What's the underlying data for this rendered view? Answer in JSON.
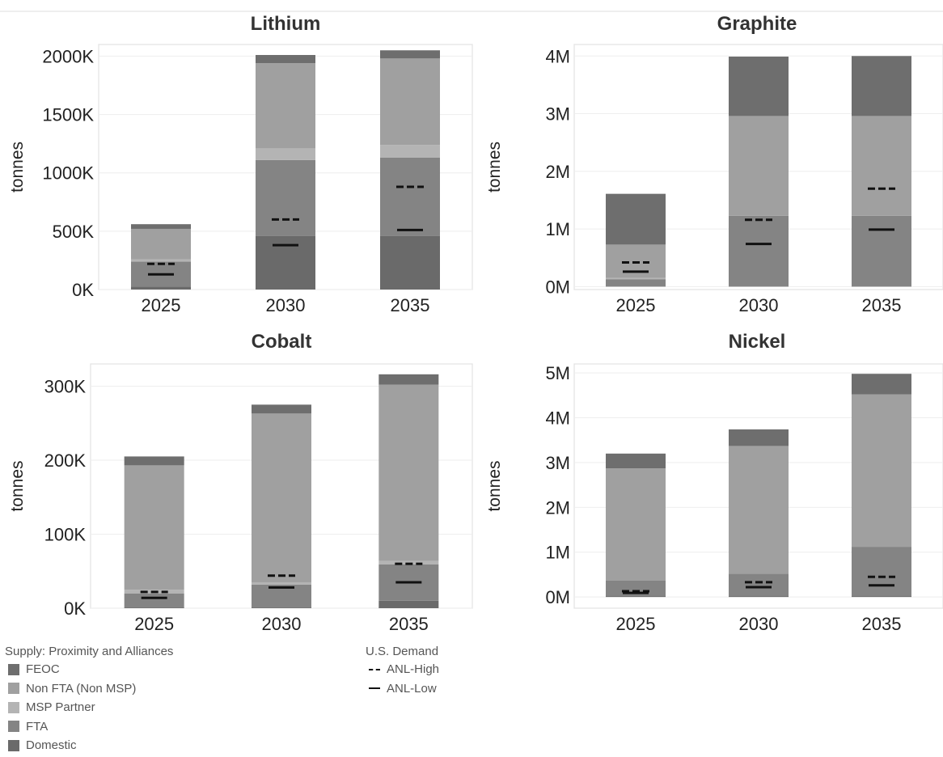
{
  "chart_data": [
    {
      "type": "bar",
      "stacked": true,
      "title": "Lithium",
      "ylabel": "tonnes",
      "categories": [
        "2025",
        "2030",
        "2035"
      ],
      "ylim": [
        0,
        2100000
      ],
      "yticks": [
        0,
        500000,
        1000000,
        1500000,
        2000000
      ],
      "yticklabels": [
        "0K",
        "500K",
        "1000K",
        "1500K",
        "2000K"
      ],
      "series": [
        {
          "name": "Domestic",
          "values": [
            25000,
            460000,
            460000
          ]
        },
        {
          "name": "FTA",
          "values": [
            215000,
            650000,
            670000
          ]
        },
        {
          "name": "MSP Partner",
          "values": [
            20000,
            100000,
            110000
          ]
        },
        {
          "name": "Non FTA (Non MSP)",
          "values": [
            260000,
            730000,
            740000
          ]
        },
        {
          "name": "FEOC",
          "values": [
            40000,
            70000,
            70000
          ]
        }
      ],
      "demand": {
        "ANL-High": [
          220000,
          600000,
          880000
        ],
        "ANL-Low": [
          130000,
          380000,
          510000
        ]
      }
    },
    {
      "type": "bar",
      "stacked": true,
      "title": "Graphite",
      "ylabel": "tonnes",
      "categories": [
        "2025",
        "2030",
        "2035"
      ],
      "ylim": [
        -50000,
        4200000
      ],
      "yticks": [
        0,
        1000000,
        2000000,
        3000000,
        4000000
      ],
      "yticklabels": [
        "0M",
        "1M",
        "2M",
        "3M",
        "4M"
      ],
      "series": [
        {
          "name": "Domestic",
          "values": [
            0,
            0,
            0
          ]
        },
        {
          "name": "FTA",
          "values": [
            130000,
            1230000,
            1230000
          ]
        },
        {
          "name": "MSP Partner",
          "values": [
            20000,
            0,
            0
          ]
        },
        {
          "name": "Non FTA (Non MSP)",
          "values": [
            580000,
            1730000,
            1730000
          ]
        },
        {
          "name": "FEOC",
          "values": [
            880000,
            1030000,
            1040000
          ]
        }
      ],
      "demand": {
        "ANL-High": [
          420000,
          1160000,
          1700000
        ],
        "ANL-Low": [
          260000,
          740000,
          990000
        ]
      }
    },
    {
      "type": "bar",
      "stacked": true,
      "title": "Cobalt",
      "ylabel": "tonnes",
      "categories": [
        "2025",
        "2030",
        "2035"
      ],
      "ylim": [
        0,
        330000
      ],
      "yticks": [
        0,
        100000,
        200000,
        300000
      ],
      "yticklabels": [
        "0K",
        "100K",
        "200K",
        "300K"
      ],
      "series": [
        {
          "name": "Domestic",
          "values": [
            1000,
            1000,
            10000
          ]
        },
        {
          "name": "FTA",
          "values": [
            19000,
            31000,
            49000
          ]
        },
        {
          "name": "MSP Partner",
          "values": [
            5000,
            3000,
            5000
          ]
        },
        {
          "name": "Non FTA (Non MSP)",
          "values": [
            168000,
            228000,
            238000
          ]
        },
        {
          "name": "FEOC",
          "values": [
            12000,
            12000,
            14000
          ]
        }
      ],
      "demand": {
        "ANL-High": [
          22000,
          44000,
          60000
        ],
        "ANL-Low": [
          14000,
          28000,
          35000
        ]
      }
    },
    {
      "type": "bar",
      "stacked": true,
      "title": "Nickel",
      "ylabel": "tonnes",
      "categories": [
        "2025",
        "2030",
        "2035"
      ],
      "ylim": [
        -250000,
        5200000
      ],
      "yticks": [
        0,
        1000000,
        2000000,
        3000000,
        4000000,
        5000000
      ],
      "yticklabels": [
        "0M",
        "1M",
        "2M",
        "3M",
        "4M",
        "5M"
      ],
      "series": [
        {
          "name": "Domestic",
          "values": [
            20000,
            20000,
            20000
          ]
        },
        {
          "name": "FTA",
          "values": [
            350000,
            500000,
            1100000
          ]
        },
        {
          "name": "MSP Partner",
          "values": [
            0,
            0,
            0
          ]
        },
        {
          "name": "Non FTA (Non MSP)",
          "values": [
            2500000,
            2850000,
            3400000
          ]
        },
        {
          "name": "FEOC",
          "values": [
            330000,
            370000,
            460000
          ]
        }
      ],
      "demand": {
        "ANL-High": [
          130000,
          330000,
          450000
        ],
        "ANL-Low": [
          90000,
          220000,
          260000
        ]
      }
    }
  ],
  "legend": {
    "supply_title": "Supply: Proximity and Alliances",
    "supply_items": [
      {
        "label": "FEOC",
        "color": "#6e6e6e"
      },
      {
        "label": "Non FTA (Non MSP)",
        "color": "#a0a0a0"
      },
      {
        "label": "MSP Partner",
        "color": "#b4b4b4"
      },
      {
        "label": "FTA",
        "color": "#848484"
      },
      {
        "label": "Domestic",
        "color": "#6a6a6a"
      }
    ],
    "demand_title": "U.S. Demand",
    "demand_items": [
      {
        "label": "ANL-High",
        "style": "dashed"
      },
      {
        "label": "ANL-Low",
        "style": "solid"
      }
    ]
  }
}
